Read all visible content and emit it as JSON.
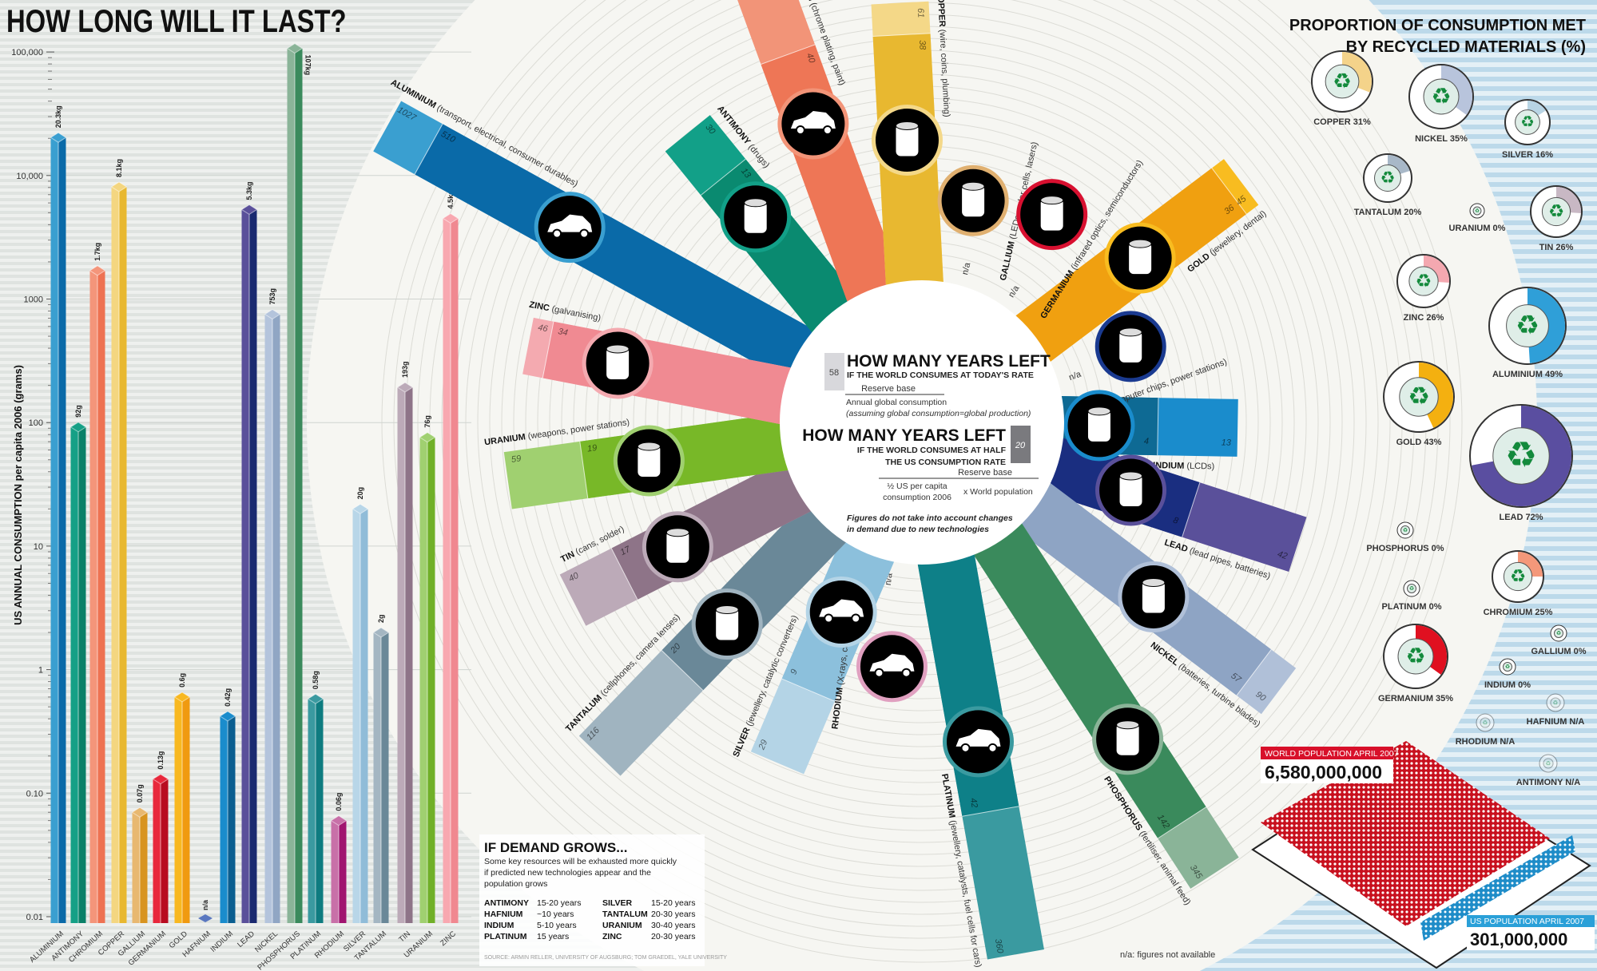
{
  "title": "HOW LONG WILL IT LAST?",
  "colors": {
    "background_stripe": "#dfe3e0",
    "disc": "#f6f6f2",
    "blue_stripe": "#bcd9ea",
    "recycle_green": "#138a3c"
  },
  "chart_data": [
    {
      "type": "bar",
      "ylabel": "US ANNUAL CONSUMPTION per capita 2006 (grams)",
      "yscale": "log",
      "ylim": [
        0.01,
        100000
      ],
      "yticks": [
        {
          "value": 100000,
          "label": "100,000"
        },
        {
          "value": 10000,
          "label": "10,000"
        },
        {
          "value": 1000,
          "label": "1000"
        },
        {
          "value": 100,
          "label": "100"
        },
        {
          "value": 10,
          "label": "10"
        },
        {
          "value": 1,
          "label": "1"
        },
        {
          "value": 0.1,
          "label": "0.10"
        },
        {
          "value": 0.01,
          "label": "0.01"
        }
      ],
      "categories": [
        "ALUMINIUM",
        "ANTIMONY",
        "CHROMIUM",
        "COPPER",
        "GALLIUM",
        "GERMANIUM",
        "GOLD",
        "HAFNIUM",
        "INDIUM",
        "LEAD",
        "NICKEL",
        "PHOSPHORUS",
        "PLATINUM",
        "RHODIUM",
        "SILVER",
        "TANTALUM",
        "TIN",
        "URANIUM",
        "ZINC"
      ],
      "values": [
        20300,
        92,
        1700,
        8100,
        0.07,
        0.13,
        0.6,
        null,
        0.42,
        5300,
        753,
        107000,
        0.58,
        0.06,
        20,
        2,
        193,
        76,
        4500
      ],
      "value_labels": [
        "20.3kg",
        "92g",
        "1.7kg",
        "8.1kg",
        "0.07g",
        "0.13g",
        "0.6g",
        "n/a",
        "0.42g",
        "5.3kg",
        "753g",
        "107kg",
        "0.58g",
        "0.06g",
        "20g",
        "2g",
        "193g",
        "76g",
        "4.5kg"
      ],
      "colors": [
        [
          "#3a9fd0",
          "#0a6aa8"
        ],
        [
          "#15a086",
          "#0a8068"
        ],
        [
          "#f4957a",
          "#ee7252"
        ],
        [
          "#f4d680",
          "#e8b830"
        ],
        [
          "#e8b870",
          "#d89420"
        ],
        [
          "#e8283c",
          "#b80c20"
        ],
        [
          "#f8b820",
          "#f09a10"
        ],
        [
          "#8aa0d8",
          "#5a78c0"
        ],
        [
          "#1a8ccc",
          "#0a5e90"
        ],
        [
          "#5a509a",
          "#1a2a70"
        ],
        [
          "#b4c4dc",
          "#90a6c4"
        ],
        [
          "#8ab498",
          "#3a8a5c"
        ],
        [
          "#3a9aa0",
          "#0e7c80"
        ],
        [
          "#c870a8",
          "#a01470"
        ],
        [
          "#b8d6e8",
          "#90bcd8"
        ],
        [
          "#a4b6c2",
          "#6a8898"
        ],
        [
          "#bcaab8",
          "#8e7488"
        ],
        [
          "#a0d070",
          "#70b028"
        ],
        [
          "#f8a8b0",
          "#f08890"
        ]
      ]
    },
    {
      "type": "radial-bar",
      "legend_today": "IF THE WORLD CONSUMES AT TODAY'S RATE",
      "legend_half_us": "IF THE WORLD CONSUMES AT HALF THE US CONSUMPTION RATE",
      "na_label": "n/a",
      "metals": [
        {
          "name": "ALUMINIUM",
          "uses": "(transport, electrical, consumer durables)",
          "years_today": 1027,
          "years_half_us": 510,
          "today_label": "1027",
          "half_us_label": "510",
          "color_today": "#3a9fd0",
          "color_half_us": "#0a6aa8",
          "icon": "car-and-washing-machine-icon"
        },
        {
          "name": "ANTIMONY",
          "uses": "(drugs)",
          "years_today": 30,
          "years_half_us": 13,
          "today_label": "30",
          "half_us_label": "13",
          "color_today": "#12a088",
          "color_half_us": "#0a8a70",
          "icon": "pills-icon"
        },
        {
          "name": "CHROMIUM",
          "uses": "(chrome plating, paint)",
          "years_today": 143,
          "years_half_us": 40,
          "today_label": "143",
          "half_us_label": "40",
          "color_today": "#f29478",
          "color_half_us": "#ee7656",
          "icon": "car-icon"
        },
        {
          "name": "COPPER",
          "uses": "(wire, coins, plumbing)",
          "years_today": 61,
          "years_half_us": 38,
          "today_label": "61",
          "half_us_label": "38",
          "color_today": "#f4d888",
          "color_half_us": "#e8b830",
          "icon": "wire-coil-icon"
        },
        {
          "name": "GALLIUM",
          "uses": "(LEDs, solar cells, lasers)",
          "years_today": null,
          "years_half_us": null,
          "today_label": "n/a",
          "half_us_label": "",
          "color_today": "#e0b070",
          "color_half_us": "#e0b070",
          "icon": "led-icon"
        },
        {
          "name": "GERMANIUM",
          "uses": "(infrared optics, semiconductors)",
          "years_today": null,
          "years_half_us": null,
          "today_label": "n/a",
          "half_us_label": "",
          "color_today": "#d81030",
          "color_half_us": "#d81030",
          "icon": "infrared-lens-icon"
        },
        {
          "name": "GOLD",
          "uses": "(jewellery, dental)",
          "years_today": 45,
          "years_half_us": 36,
          "today_label": "45",
          "half_us_label": "36",
          "color_today": "#f8bc20",
          "color_half_us": "#f0a010",
          "icon": "ring-and-diamond-icon"
        },
        {
          "name": "HAFNIUM",
          "uses": "(computer chips, power stations)",
          "years_today": null,
          "years_half_us": null,
          "today_label": "n/a",
          "half_us_label": "",
          "color_today": "#1a3a90",
          "color_half_us": "#1a3a90",
          "icon": "microchip-icon"
        },
        {
          "name": "INDIUM",
          "uses": "(LCDs)",
          "years_today": 13,
          "years_half_us": 4,
          "today_label": "13",
          "half_us_label": "4",
          "color_today": "#1a8ccc",
          "color_half_us": "#0e6a94",
          "icon": "lcd-monitor-icon"
        },
        {
          "name": "LEAD",
          "uses": "(lead pipes, batteries)",
          "years_today": 42,
          "years_half_us": 8,
          "today_label": "42",
          "half_us_label": "8",
          "color_today": "#5a509a",
          "color_half_us": "#1a2e80",
          "icon": "pipe-and-battery-icon"
        },
        {
          "name": "NICKEL",
          "uses": "(batteries, turbine blades)",
          "years_today": 90,
          "years_half_us": 57,
          "today_label": "90",
          "half_us_label": "57",
          "color_today": "#b0c0d8",
          "color_half_us": "#8ea4c4",
          "icon": "battery-and-turbine-icon"
        },
        {
          "name": "PHOSPHORUS",
          "uses": "(fertiliser, animal feed)",
          "years_today": 345,
          "years_half_us": 142,
          "today_label": "345",
          "half_us_label": "142",
          "color_today": "#8ab498",
          "color_half_us": "#3a8a5c",
          "icon": "fertiliser-sacks-icon"
        },
        {
          "name": "PLATINUM",
          "uses": "(jewellery, catalysts, fuel cells for cars)",
          "years_today": 360,
          "years_half_us": 42,
          "today_label": "360",
          "half_us_label": "42",
          "color_today": "#3a9aa0",
          "color_half_us": "#0e8088",
          "icon": "car-and-ring-icon"
        },
        {
          "name": "RHODIUM",
          "uses": "(X-rays, cat. converters)",
          "years_today": null,
          "years_half_us": null,
          "today_label": "n/a",
          "half_us_label": "",
          "color_today": "#e0a0c0",
          "color_half_us": "#e0a0c0",
          "icon": "car-and-buildings-icon"
        },
        {
          "name": "SILVER",
          "uses": "(jewellery, catalytic converters)",
          "years_today": 29,
          "years_half_us": 9,
          "today_label": "29",
          "half_us_label": "9",
          "color_today": "#b4d4e6",
          "color_half_us": "#8cc0dc",
          "icon": "car-ring-diamond-icon"
        },
        {
          "name": "TANTALUM",
          "uses": "(cellphones, camera lenses)",
          "years_today": 116,
          "years_half_us": 20,
          "today_label": "116",
          "half_us_label": "20",
          "color_today": "#a0b4c0",
          "color_half_us": "#6a8898",
          "icon": "camera-and-phone-icon"
        },
        {
          "name": "TIN",
          "uses": "(cans, solder)",
          "years_today": 40,
          "years_half_us": 17,
          "today_label": "40",
          "half_us_label": "17",
          "color_today": "#bcaab8",
          "color_half_us": "#8e7488",
          "icon": "tin-can-icon"
        },
        {
          "name": "URANIUM",
          "uses": "(weapons, power stations)",
          "years_today": 59,
          "years_half_us": 19,
          "today_label": "59",
          "half_us_label": "19",
          "color_today": "#a0d070",
          "color_half_us": "#78b828",
          "icon": "bullet-and-weapons-icon"
        },
        {
          "name": "ZINC",
          "uses": "(galvanising)",
          "years_today": 46,
          "years_half_us": 34,
          "today_label": "46",
          "half_us_label": "34",
          "color_today": "#f4aab0",
          "color_half_us": "#f08a92",
          "icon": "bucket-icon"
        }
      ]
    },
    {
      "type": "pie",
      "title_line1": "PROPORTION OF CONSUMPTION MET",
      "title_line2": "BY RECYCLED MATERIALS (%)",
      "items": [
        {
          "name": "COPPER",
          "percent": 31,
          "label": "COPPER 31%",
          "color": "#f4d38a"
        },
        {
          "name": "NICKEL",
          "percent": 35,
          "label": "NICKEL 35%",
          "color": "#b8c4dc"
        },
        {
          "name": "SILVER",
          "percent": 16,
          "label": "SILVER 16%",
          "color": "#b8d4e4"
        },
        {
          "name": "TANTALUM",
          "percent": 20,
          "label": "TANTALUM 20%",
          "color": "#a8b8c8"
        },
        {
          "name": "URANIUM",
          "percent": 0,
          "label": "URANIUM 0%",
          "color": "#cccccc"
        },
        {
          "name": "TIN",
          "percent": 26,
          "label": "TIN 26%",
          "color": "#c8b8c4"
        },
        {
          "name": "ZINC",
          "percent": 26,
          "label": "ZINC 26%",
          "color": "#f4a8b0"
        },
        {
          "name": "ALUMINIUM",
          "percent": 49,
          "label": "ALUMINIUM 49%",
          "color": "#2f9fd8"
        },
        {
          "name": "GOLD",
          "percent": 43,
          "label": "GOLD 43%",
          "color": "#f4b010"
        },
        {
          "name": "LEAD",
          "percent": 72,
          "label": "LEAD 72%",
          "color": "#5a4ea0"
        },
        {
          "name": "PHOSPHORUS",
          "percent": 0,
          "label": "PHOSPHORUS 0%",
          "color": "#cccccc"
        },
        {
          "name": "CHROMIUM",
          "percent": 25,
          "label": "CHROMIUM 25%",
          "color": "#f4987a"
        },
        {
          "name": "PLATINUM",
          "percent": 0,
          "label": "PLATINUM 0%",
          "color": "#cccccc"
        },
        {
          "name": "GALLIUM",
          "percent": 0,
          "label": "GALLIUM 0%",
          "color": "#cccccc"
        },
        {
          "name": "GERMANIUM",
          "percent": 35,
          "label": "GERMANIUM 35%",
          "color": "#e01020"
        },
        {
          "name": "INDIUM",
          "percent": 0,
          "label": "INDIUM 0%",
          "color": "#cccccc"
        },
        {
          "name": "HAFNIUM",
          "percent": null,
          "label": "HAFNIUM N/A",
          "color": "#cccccc"
        },
        {
          "name": "RHODIUM",
          "percent": null,
          "label": "RHODIUM N/A",
          "color": "#cccccc"
        },
        {
          "name": "ANTIMONY",
          "percent": null,
          "label": "ANTIMONY N/A",
          "color": "#cccccc"
        }
      ]
    }
  ],
  "center_legend": {
    "today_value": "58",
    "title": "HOW MANY YEARS LEFT",
    "today_sub": "IF THE WORLD CONSUMES AT TODAY'S RATE",
    "today_num": "Reserve base",
    "today_den": "Annual global consumption",
    "today_note": "(assuming global consumption=global production)",
    "half_value": "20",
    "half_sub1": "IF THE WORLD CONSUMES AT HALF",
    "half_sub2": "THE US CONSUMPTION RATE",
    "half_num": "Reserve base",
    "half_den1": "½ US per capita",
    "half_den2": "consumption 2006",
    "half_mult": "x World population",
    "note1": "Figures do not take into account changes",
    "note2": "in demand due to new technologies"
  },
  "demand": {
    "title": "IF DEMAND GROWS...",
    "body": [
      "Some key resources will be exhausted more quickly",
      "if predicted new technologies appear and the",
      "population grows"
    ],
    "rows": [
      [
        "ANTIMONY",
        "15-20 years",
        "SILVER",
        "15-20 years"
      ],
      [
        "HAFNIUM",
        "~10 years",
        "TANTALUM",
        "20-30 years"
      ],
      [
        "INDIUM",
        "5-10 years",
        "URANIUM",
        "30-40 years"
      ],
      [
        "PLATINUM",
        "15 years",
        "ZINC",
        "20-30 years"
      ]
    ],
    "source": "SOURCE: ARMIN RELLER, UNIVERSITY OF AUGSBURG; TOM GRAEDEL, YALE UNIVERSITY"
  },
  "population": {
    "world_label": "WORLD POPULATION APRIL 2007",
    "world_value": "6,580,000,000",
    "world_color": "#d8102a",
    "us_label": "US POPULATION APRIL 2007",
    "us_value": "301,000,000",
    "us_color": "#2aa0d8"
  },
  "footnote": "n/a: figures not available"
}
